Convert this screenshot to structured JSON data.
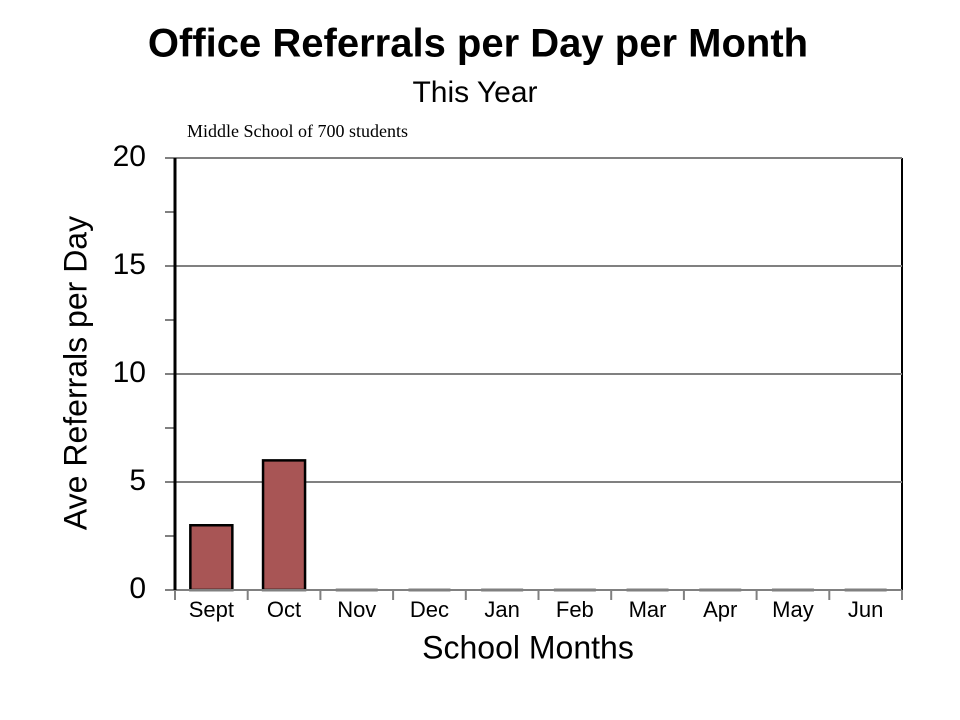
{
  "chart_data": {
    "type": "bar",
    "title": "Office Referrals per Day per Month",
    "subtitle": "This Year",
    "annotation": "Middle School of 700 students",
    "x_label": "School Months",
    "y_label": "Ave Referrals per Day",
    "categories": [
      "Sept",
      "Oct",
      "Nov",
      "Dec",
      "Jan",
      "Feb",
      "Mar",
      "Apr",
      "May",
      "Jun"
    ],
    "values": [
      3,
      6,
      0,
      0,
      0,
      0,
      0,
      0,
      0,
      0
    ],
    "color": "#a85555",
    "ylim": [
      0,
      20
    ],
    "yticks": [
      0,
      5,
      10,
      15,
      20
    ],
    "minor_yticks": [
      2.5,
      7.5,
      12.5,
      17.5
    ],
    "grid": true
  }
}
